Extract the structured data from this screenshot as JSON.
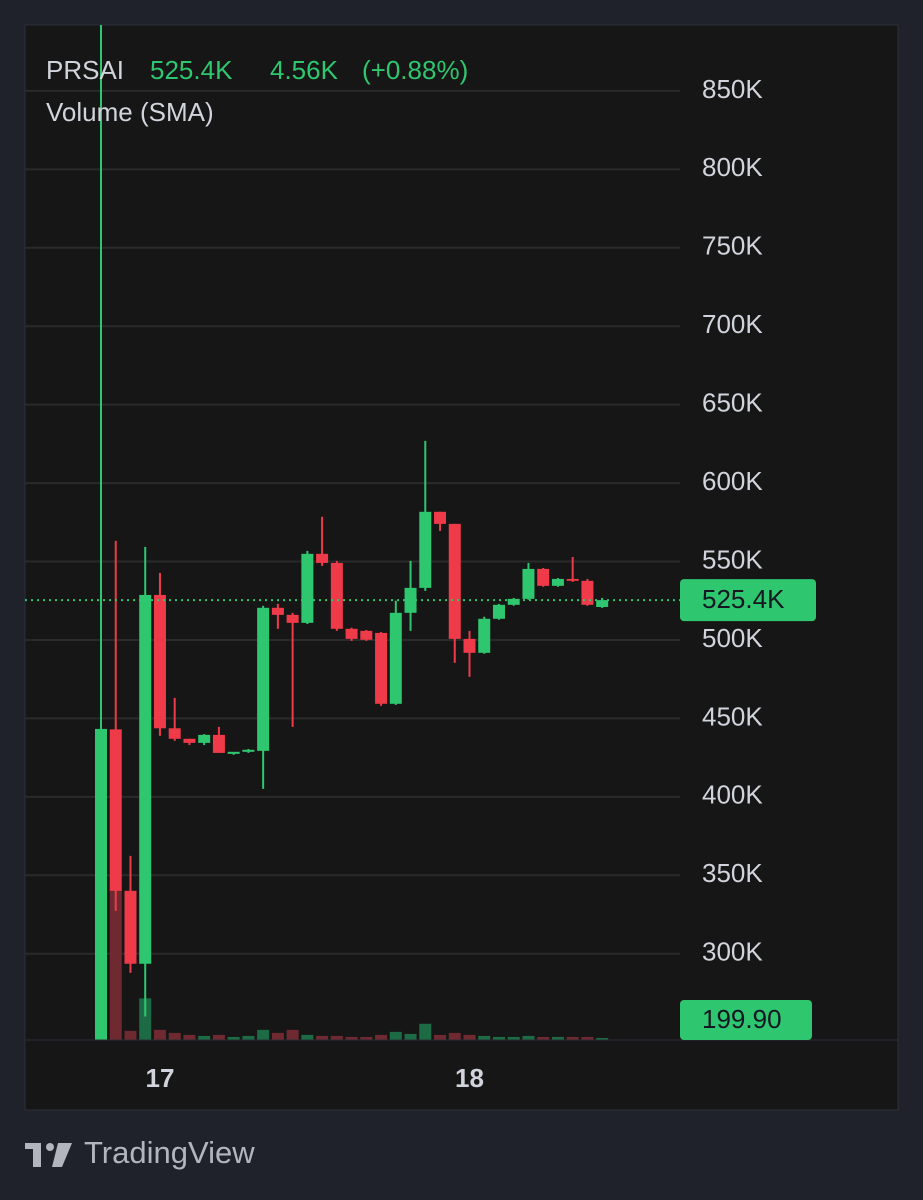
{
  "chart_data": {
    "type": "candlestick",
    "symbol": "PRSAI",
    "price_label": "525.4K",
    "change": "4.56K",
    "change_pct": "(+0.88%)",
    "indicator": "Volume (SMA)",
    "brand": "TradingView",
    "categories": [
      null,
      null,
      null,
      null,
      "17",
      null,
      null,
      null,
      null,
      null,
      null,
      null,
      null,
      null,
      null,
      null,
      null,
      null,
      null,
      null,
      null,
      null,
      null,
      null,
      null,
      "18",
      null,
      null,
      null,
      null,
      null,
      null,
      null,
      null,
      null
    ],
    "open": [
      240000,
      443000,
      340100,
      293600,
      528700,
      443700,
      437000,
      434400,
      439500,
      427400,
      428700,
      429300,
      520500,
      516000,
      510900,
      554900,
      549100,
      507100,
      505800,
      504500,
      459300,
      517300,
      533200,
      581700,
      574000,
      500700,
      491800,
      513500,
      522400,
      526200,
      545300,
      534500,
      538900,
      537700,
      521000
    ],
    "high": [
      900000,
      563200,
      362400,
      559300,
      542800,
      463100,
      437000,
      440000,
      444600,
      428000,
      430500,
      521800,
      523000,
      517300,
      556800,
      578500,
      550400,
      507800,
      506400,
      505100,
      525000,
      550400,
      626900,
      581700,
      574000,
      505800,
      514800,
      523000,
      526800,
      549100,
      545900,
      539500,
      552900,
      538900,
      526800
    ],
    "low": [
      240000,
      327300,
      287800,
      260000,
      438900,
      435700,
      433000,
      433000,
      428000,
      426800,
      428000,
      405100,
      507100,
      444600,
      510200,
      547200,
      505800,
      499400,
      499400,
      458000,
      458600,
      505800,
      531300,
      569500,
      485400,
      476500,
      491200,
      512900,
      521800,
      525600,
      533900,
      533900,
      537000,
      521800,
      520400
    ],
    "close": [
      443300,
      340100,
      293600,
      528700,
      443700,
      437000,
      434400,
      439500,
      428000,
      428700,
      430000,
      520500,
      516000,
      510900,
      554900,
      549100,
      507100,
      500700,
      500100,
      459300,
      517300,
      533200,
      581700,
      574000,
      500700,
      491800,
      513500,
      522400,
      526200,
      545300,
      534500,
      538900,
      537700,
      522400,
      525400
    ],
    "volume": [
      30000,
      14800,
      900,
      4100,
      1000,
      700,
      500,
      400,
      500,
      300,
      400,
      1000,
      700,
      1000,
      500,
      400,
      400,
      300,
      300,
      500,
      800,
      600,
      1600,
      500,
      700,
      500,
      400,
      300,
      300,
      400,
      300,
      300,
      300,
      300,
      199.9
    ],
    "up_color": "#2ec66e",
    "down_color": "#ef3a4a",
    "volume_up_color": "#1c6b44",
    "volume_down_color": "#6e2a30",
    "ylim": [
      245000,
      892000
    ],
    "yticks": [
      {
        "value": 300000,
        "label": "300K"
      },
      {
        "value": 350000,
        "label": "350K"
      },
      {
        "value": 400000,
        "label": "400K"
      },
      {
        "value": 450000,
        "label": "450K"
      },
      {
        "value": 500000,
        "label": "500K"
      },
      {
        "value": 550000,
        "label": "550K"
      },
      {
        "value": 600000,
        "label": "600K"
      },
      {
        "value": 650000,
        "label": "650K"
      },
      {
        "value": 700000,
        "label": "700K"
      },
      {
        "value": 750000,
        "label": "750K"
      },
      {
        "value": 800000,
        "label": "800K"
      },
      {
        "value": 850000,
        "label": "850K"
      }
    ],
    "y2lim": [
      0,
      100000
    ],
    "last_price": {
      "value": 525400,
      "label": "525.4K"
    },
    "last_volume": {
      "value": 199.9,
      "label": "199.90"
    },
    "grid": true
  }
}
